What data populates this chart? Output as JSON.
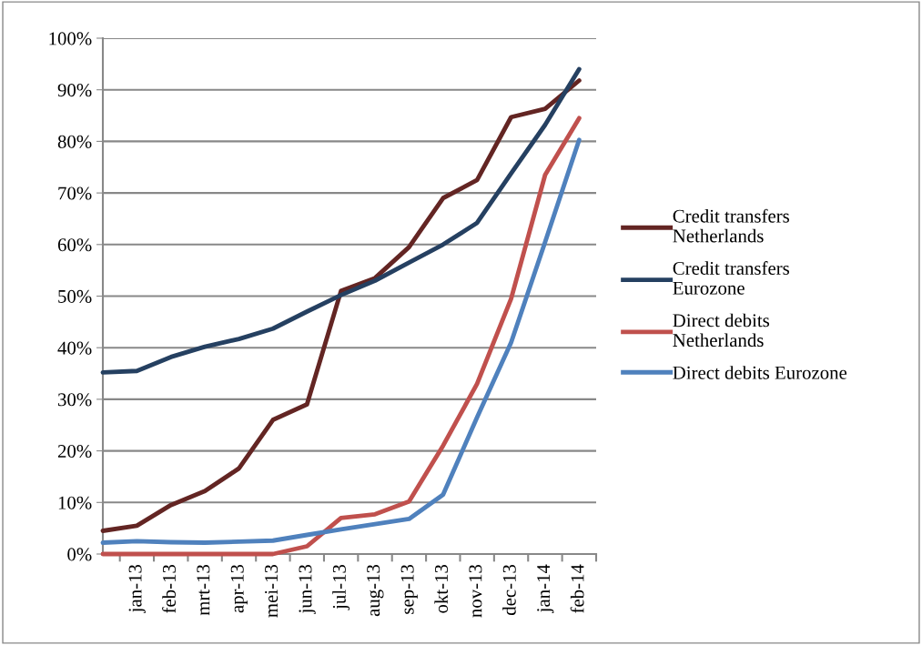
{
  "chart_data": {
    "type": "line",
    "categories": [
      null,
      "jan-13",
      "feb-13",
      "mrt-13",
      "apr-13",
      "mei-13",
      "jun-13",
      "jul-13",
      "aug-13",
      "sep-13",
      "okt-13",
      "nov-13",
      "dec-13",
      "jan-14",
      "feb-14"
    ],
    "ylim": [
      0,
      100
    ],
    "yticks": [
      {
        "value": 0,
        "label": "0%"
      },
      {
        "value": 10,
        "label": "10%"
      },
      {
        "value": 20,
        "label": "20%"
      },
      {
        "value": 30,
        "label": "30%"
      },
      {
        "value": 40,
        "label": "40%"
      },
      {
        "value": 50,
        "label": "50%"
      },
      {
        "value": 60,
        "label": "60%"
      },
      {
        "value": 70,
        "label": "70%"
      },
      {
        "value": 80,
        "label": "80%"
      },
      {
        "value": 90,
        "label": "90%"
      },
      {
        "value": 100,
        "label": "100%"
      }
    ],
    "grid": "y",
    "legend": "right",
    "marker": "none",
    "line_style": "solid",
    "series": [
      {
        "name": "Credit transfers Netherlands",
        "color": "#632523",
        "values": [
          4.5,
          5.5,
          9.5,
          12.2,
          16.6,
          26,
          29,
          51,
          53.5,
          59.5,
          69,
          72.5,
          84.7,
          86.3,
          91.8
        ]
      },
      {
        "name": "Credit transfers Eurozone",
        "color": "#254061",
        "values": [
          35.2,
          35.5,
          38.2,
          40.2,
          41.7,
          43.7,
          47,
          50.2,
          53,
          56.5,
          60,
          64.2,
          73.8,
          83.2,
          94
        ]
      },
      {
        "name": "Direct debits Netherlands",
        "color": "#c0504d",
        "values": [
          0,
          0,
          0,
          0,
          0,
          0,
          1.5,
          7,
          7.7,
          10.2,
          21,
          33,
          49.5,
          73.5,
          84.5
        ]
      },
      {
        "name": "Direct debits Eurozone",
        "color": "#4f81bd",
        "values": [
          2.2,
          2.5,
          2.3,
          2.2,
          2.4,
          2.6,
          3.7,
          4.8,
          5.8,
          6.8,
          11.5,
          26.5,
          41,
          60.5,
          80.3
        ]
      }
    ]
  }
}
